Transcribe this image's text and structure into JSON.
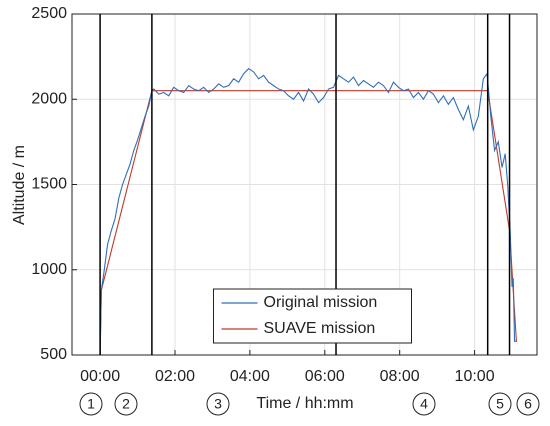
{
  "chart_data": {
    "type": "line",
    "y_label": "Altitude / m",
    "x_label": "Time / hh:mm",
    "xlim": [
      -45,
      700
    ],
    "ylim": [
      500,
      2500
    ],
    "xticks": [
      {
        "value": 0,
        "label": "00:00"
      },
      {
        "value": 120,
        "label": "02:00"
      },
      {
        "value": 240,
        "label": "04:00"
      },
      {
        "value": 360,
        "label": "06:00"
      },
      {
        "value": 480,
        "label": "08:00"
      },
      {
        "value": 600,
        "label": "10:00"
      }
    ],
    "yticks": [
      500,
      1000,
      1500,
      2000,
      2500
    ],
    "grid": true,
    "legend": "lower center",
    "phase_lines": [
      0,
      83,
      378,
      621,
      656
    ],
    "phase_labels": [
      "1",
      "2",
      "3",
      "4",
      "5",
      "6"
    ],
    "series": [
      {
        "name": "Original mission",
        "color": "#2f6fba",
        "x": [
          0,
          2,
          6,
          12,
          18,
          24,
          30,
          36,
          42,
          48,
          54,
          60,
          66,
          72,
          78,
          83,
          86,
          94,
          102,
          110,
          118,
          126,
          134,
          142,
          150,
          158,
          166,
          174,
          182,
          190,
          198,
          206,
          214,
          222,
          230,
          238,
          246,
          254,
          262,
          270,
          278,
          286,
          294,
          302,
          310,
          318,
          326,
          334,
          342,
          350,
          358,
          366,
          374,
          382,
          390,
          398,
          406,
          414,
          422,
          430,
          438,
          446,
          454,
          462,
          470,
          478,
          486,
          494,
          502,
          510,
          518,
          526,
          534,
          542,
          550,
          558,
          566,
          574,
          582,
          590,
          598,
          606,
          614,
          620,
          626,
          632,
          638,
          644,
          649,
          653,
          657,
          660,
          662,
          664,
          668
        ],
        "values": [
          500,
          880,
          980,
          1150,
          1230,
          1300,
          1420,
          1500,
          1560,
          1620,
          1700,
          1760,
          1830,
          1900,
          1960,
          2050,
          2060,
          2030,
          2040,
          2020,
          2070,
          2050,
          2040,
          2080,
          2060,
          2050,
          2070,
          2040,
          2060,
          2090,
          2070,
          2080,
          2120,
          2100,
          2150,
          2180,
          2160,
          2120,
          2140,
          2100,
          2080,
          2060,
          2050,
          2020,
          2000,
          2040,
          1990,
          2060,
          2030,
          1980,
          2010,
          2060,
          2070,
          2140,
          2120,
          2100,
          2130,
          2080,
          2110,
          2090,
          2070,
          2100,
          2080,
          2040,
          2100,
          2070,
          2050,
          2060,
          2010,
          2040,
          2000,
          2050,
          2030,
          1980,
          2020,
          1970,
          2010,
          1940,
          1880,
          1960,
          1820,
          1900,
          2120,
          2150,
          1900,
          1700,
          1750,
          1600,
          1680,
          1500,
          1230,
          900,
          950,
          580,
          580
        ]
      },
      {
        "name": "SUAVE mission",
        "color": "#c0392b",
        "x": [
          0,
          2,
          83,
          621,
          656,
          667
        ],
        "values": [
          500,
          880,
          2050,
          2050,
          1230,
          580
        ]
      }
    ]
  }
}
